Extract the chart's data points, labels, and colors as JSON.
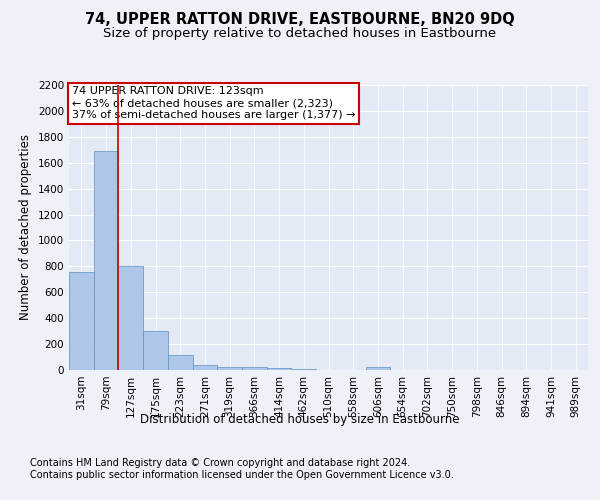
{
  "title": "74, UPPER RATTON DRIVE, EASTBOURNE, BN20 9DQ",
  "subtitle": "Size of property relative to detached houses in Eastbourne",
  "xlabel": "Distribution of detached houses by size in Eastbourne",
  "ylabel": "Number of detached properties",
  "categories": [
    "31sqm",
    "79sqm",
    "127sqm",
    "175sqm",
    "223sqm",
    "271sqm",
    "319sqm",
    "366sqm",
    "414sqm",
    "462sqm",
    "510sqm",
    "558sqm",
    "606sqm",
    "654sqm",
    "702sqm",
    "750sqm",
    "798sqm",
    "846sqm",
    "894sqm",
    "941sqm",
    "989sqm"
  ],
  "values": [
    760,
    1690,
    800,
    300,
    115,
    40,
    25,
    20,
    15,
    5,
    0,
    0,
    25,
    0,
    0,
    0,
    0,
    0,
    0,
    0,
    0
  ],
  "bar_color": "#aec6e8",
  "bar_edge_color": "#5a8fc2",
  "highlight_bar_index": 2,
  "highlight_line_color": "#cc0000",
  "ylim": [
    0,
    2200
  ],
  "yticks": [
    0,
    200,
    400,
    600,
    800,
    1000,
    1200,
    1400,
    1600,
    1800,
    2000,
    2200
  ],
  "annotation_text": "74 UPPER RATTON DRIVE: 123sqm\n← 63% of detached houses are smaller (2,323)\n37% of semi-detached houses are larger (1,377) →",
  "annotation_box_color": "#ffffff",
  "annotation_box_edge": "#cc0000",
  "footer_line1": "Contains HM Land Registry data © Crown copyright and database right 2024.",
  "footer_line2": "Contains public sector information licensed under the Open Government Licence v3.0.",
  "bg_color": "#eef2f8",
  "plot_bg_color": "#e4eaf5",
  "grid_color": "#ffffff",
  "title_fontsize": 10.5,
  "subtitle_fontsize": 9.5,
  "axis_label_fontsize": 8.5,
  "tick_fontsize": 7.5,
  "annotation_fontsize": 8,
  "footer_fontsize": 7
}
